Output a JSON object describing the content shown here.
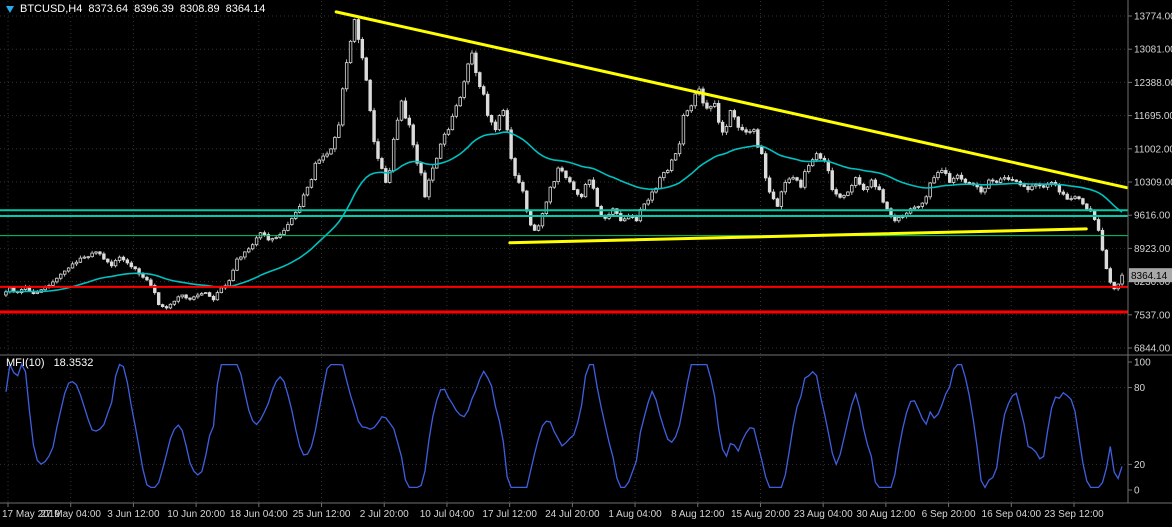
{
  "header": {
    "symbol": "BTCUSD,H4",
    "open": "8373.64",
    "high": "8396.39",
    "low": "8308.89",
    "close": "8364.14"
  },
  "indicator": {
    "label": "MFI(10)",
    "value": "18.3532"
  },
  "colors": {
    "background": "#000000",
    "grid": "#323232",
    "candle": "#dcdcdc",
    "separator": "#707070",
    "axis_text": "#d4d4d4",
    "badge_bg": "#a8a8a8",
    "trendline_yellow": "#ffff00",
    "support_teal": "#00ccaa",
    "support_green": "#00cc66",
    "level_red": "#ff0000",
    "ma_cyan": "#00c0c0",
    "mfi_blue": "#3f5fe0"
  },
  "chart_data": {
    "type": "candlestick",
    "title": "BTCUSD H4 with MFI(10)",
    "symbol": "BTCUSD",
    "timeframe": "H4",
    "ohlc_current": {
      "open": 8373.64,
      "high": 8396.39,
      "low": 8308.89,
      "close": 8364.14
    },
    "y_ticks": [
      13774,
      13081,
      12388,
      11695,
      11002,
      10309,
      9616,
      8923,
      8230,
      7537,
      6844
    ],
    "x_labels": [
      "17 May 2019",
      "27 May 04:00",
      "3 Jun 12:00",
      "10 Jun 20:00",
      "18 Jun 04:00",
      "25 Jun 12:00",
      "2 Jul 20:00",
      "10 Jul 04:00",
      "17 Jul 12:00",
      "24 Jul 20:00",
      "1 Aug 04:00",
      "8 Aug 12:00",
      "15 Aug 20:00",
      "23 Aug 04:00",
      "30 Aug 12:00",
      "6 Sep 20:00",
      "16 Sep 04:00",
      "23 Sep 12:00"
    ],
    "grid": true,
    "closes": [
      7950,
      8100,
      8000,
      8120,
      7980,
      8060,
      8150,
      8300,
      8450,
      8600,
      8720,
      8750,
      8850,
      8700,
      8560,
      8740,
      8620,
      8500,
      8320,
      8150,
      7750,
      7680,
      7820,
      7950,
      7860,
      7950,
      8000,
      7850,
      8100,
      8250,
      8700,
      8850,
      9000,
      9250,
      9100,
      9150,
      9300,
      9550,
      9800,
      10200,
      10700,
      10850,
      11000,
      11500,
      12800,
      13700,
      12900,
      11800,
      10800,
      10300,
      11200,
      12000,
      11500,
      10700,
      10000,
      10600,
      11100,
      11400,
      11900,
      12400,
      13000,
      12300,
      11700,
      11400,
      11800,
      10800,
      10300,
      9700,
      9300,
      9650,
      10200,
      10600,
      10400,
      10150,
      10000,
      10350,
      9800,
      9550,
      9750,
      9500,
      9600,
      9500,
      9850,
      10100,
      10400,
      10550,
      10900,
      11700,
      11900,
      12250,
      11850,
      11950,
      11350,
      11800,
      11450,
      11350,
      11400,
      10900,
      10100,
      9800,
      10300,
      10400,
      10200,
      10650,
      10900,
      10750,
      10150,
      9990,
      10100,
      10400,
      10150,
      10350,
      10150,
      9750,
      9500,
      9600,
      9750,
      9800,
      10000,
      10400,
      10550,
      10300,
      10450,
      10300,
      10250,
      10100,
      10350,
      10300,
      10400,
      10350,
      10250,
      10150,
      10250,
      10200,
      10300,
      10100,
      9950,
      10000,
      9850,
      9700,
      9300,
      8500,
      8080,
      8364.14
    ],
    "ma": {
      "period": 45,
      "color": "#00c0c0"
    },
    "trendlines": [
      {
        "name": "trendline-descending-resistance",
        "x1": 0.298,
        "p1": 13860,
        "x2": 0.999,
        "p2": 10190,
        "color": "#ffff00",
        "width": 3
      },
      {
        "name": "trendline-minor-support",
        "x1": 0.452,
        "p1": 9040,
        "x2": 0.963,
        "p2": 9330,
        "color": "#ffff00",
        "width": 3
      }
    ],
    "hlines": [
      {
        "price": 9720,
        "color": "#00ccaa",
        "width": 2
      },
      {
        "price": 9600,
        "color": "#00ccaa",
        "width": 2
      },
      {
        "price": 9190,
        "color": "#00cc66",
        "width": 1
      },
      {
        "price": 8120,
        "color": "#ff0000",
        "width": 2
      },
      {
        "price": 7596,
        "color": "#ff0000",
        "width": 3
      }
    ],
    "mfi": {
      "label": "MFI(10)",
      "period": 10,
      "current": 18.3532,
      "levels": [
        0,
        20,
        80,
        100
      ],
      "color": "#3f5fe0",
      "ylim": [
        0,
        100
      ]
    }
  }
}
